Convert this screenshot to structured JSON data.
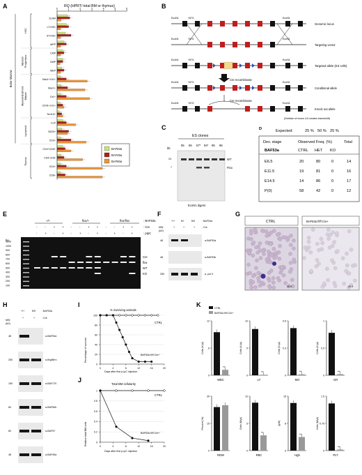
{
  "panels": {
    "A": {
      "letter": "A",
      "axis_title": "RQ (HPRT/ total BM or thymus)",
      "ticks": [
        "0",
        "1",
        "2",
        "3",
        "4",
        "5",
        "6"
      ],
      "legend": [
        "BAF53a",
        "BAF45a",
        "BAF60a"
      ],
      "colors": {
        "BAF53a": "#c9e27a",
        "BAF45a": "#a3231c",
        "BAF60a": "#e8953a"
      },
      "groups": [
        {
          "name": "HSC",
          "rows": [
            "SLAM",
            "LT-HSC",
            "ST-HSC",
            "MPP"
          ]
        },
        {
          "name": "Myeloid Progenitors",
          "rows": [
            "CMP",
            "GMP",
            "MEP"
          ]
        },
        {
          "name": "Myeloid-Erythroid Mature",
          "rows": [
            "Mac1+Gr1+",
            "Mac1+",
            "Gr1+",
            "CD41+Gr1+",
            "Ter119+"
          ]
        },
        {
          "name": "Lymphoid",
          "rows": [
            "CLP",
            "B220+",
            "CD3+"
          ]
        },
        {
          "name": "Thymus",
          "rows": [
            "CD4+CD8+",
            "CD4-CD8-",
            "CD4+",
            "CD8+"
          ]
        }
      ],
      "bone_marrow_label": "Bone Marrow"
    },
    "B": {
      "letter": "B",
      "rows": [
        "Genomic locus",
        "Targeting vector",
        "Targeted allele (ES cells)",
        "Conditional allele",
        "Knock out allele"
      ],
      "cre1": "Cre recombinase",
      "cre2": "Cre recombinase",
      "note": "(Deletion of exons 4-5 creates frameshift)",
      "site": "EcoN1",
      "atg": "ATG"
    },
    "C": {
      "letter": "C",
      "title": "ES clones",
      "lanes": [
        "55",
        "56",
        "57*",
        "94*",
        "95",
        "96"
      ],
      "kb": "kb",
      "mw": [
        "24",
        "7"
      ],
      "wt": "WT",
      "flox": "Flox",
      "digest": "EcoN1 digest"
    },
    "D": {
      "letter": "D",
      "expected_label": "Expected:",
      "expected": [
        "25 %",
        "50 %",
        "25 %"
      ],
      "headers": [
        "Dev. stage",
        "Observed Freq. (%)",
        "Total"
      ],
      "subheaders": [
        "BAF53a",
        "CTRL",
        "HET",
        "KO"
      ],
      "rows": [
        [
          "E6.5",
          "20",
          "80",
          "0",
          "14"
        ],
        [
          "E11.5",
          "19",
          "81",
          "0",
          "16"
        ],
        [
          "E14.5",
          "14",
          "86",
          "0",
          "17"
        ],
        [
          "P(0)",
          "58",
          "42",
          "0",
          "12"
        ]
      ]
    },
    "E": {
      "letter": "E",
      "genotypes": [
        "+/+",
        "flox/+",
        "flox/flox"
      ],
      "row_labels": [
        ": BAF53a",
        ": Cre",
        ": pIpC"
      ],
      "cre_signs": [
        "-",
        "-",
        "+",
        "+",
        "-",
        "-",
        "+",
        "+",
        "-",
        "-",
        "+",
        "+"
      ],
      "pipc_signs": [
        "-",
        "+",
        "-",
        "+",
        "-",
        "+",
        "-",
        "+",
        "-",
        "+",
        "-",
        "+"
      ],
      "bp": "bp",
      "ladder": [
        "1200",
        "1000",
        "900",
        "800",
        "700",
        "600",
        "500",
        "400",
        "300",
        "200",
        "100"
      ],
      "bands": [
        "Cre",
        "flox",
        "WT",
        "KO"
      ]
    },
    "F": {
      "letter": "F",
      "genotypes": [
        "+/+",
        "fl/+",
        "fl/fl"
      ],
      "genotype_label": ": BAF53a",
      "cre_signs": [
        "+",
        "+",
        "+"
      ],
      "cre_label": ": Cre",
      "mw": "MW",
      "kd": "(kD)",
      "markers": [
        "48",
        "48",
        "250"
      ],
      "blots": [
        "α-BAF53a",
        "α-BAF53b",
        "α- pol II"
      ]
    },
    "G": {
      "letter": "G",
      "titles": [
        "CTRL",
        "BAF53a fl/fl Cre+"
      ],
      "mag": "20 X"
    },
    "H": {
      "letter": "H",
      "genotypes": [
        "+/+",
        "fl/fl"
      ],
      "genotype_label": ": BAF53a",
      "cre_signs": [
        "+",
        "+"
      ],
      "cre_label": ": Cre",
      "mw": "MW",
      "kd": "(kD)",
      "markers": [
        "48",
        "250",
        "150",
        "60",
        "60",
        "48"
      ],
      "blots": [
        "α-BAF53a",
        "α-Brg/Brm",
        "α-BAF170",
        "α-BAF60b",
        "α-BAF57",
        "α-BAF45a"
      ]
    },
    "I": {
      "letter": "I",
      "title": "% Surviving animals",
      "ylabel": "Percentage of survival",
      "xlabel": "Days after first p-IpC injection",
      "ctrl": "CTRL",
      "ko": "BAF53a fl/fl Cre+",
      "chart_data": {
        "type": "line",
        "xlim": [
          0,
          20
        ],
        "ylim": [
          0,
          100
        ],
        "series": [
          {
            "name": "CTRL",
            "x": [
              0,
              2,
              4,
              6,
              8,
              10,
              12,
              14,
              16,
              18
            ],
            "y": [
              100,
              100,
              100,
              100,
              100,
              100,
              100,
              100,
              100,
              100
            ]
          },
          {
            "name": "BAF53a fl/fl Cre+",
            "x": [
              0,
              2,
              4,
              5,
              6,
              7,
              8,
              9,
              10,
              12,
              14,
              16
            ],
            "y": [
              100,
              100,
              100,
              85,
              70,
              55,
              40,
              25,
              12,
              5,
              5,
              5
            ]
          }
        ]
      }
    },
    "J": {
      "letter": "J",
      "title": "Total BM cellularity",
      "ylabel": "Relative total BM cells",
      "xlabel": "Days after first p-IpC injection",
      "ctrl": "CTRL",
      "ko": "BAF53a fl/fl Cre+",
      "chart_data": {
        "type": "line",
        "xlim": [
          0,
          20
        ],
        "ylim": [
          0,
          1
        ],
        "series": [
          {
            "name": "CTRL",
            "x": [
              0,
              5,
              10,
              15,
              20
            ],
            "y": [
              1,
              1,
              1,
              1,
              1
            ]
          },
          {
            "name": "BAF53a fl/fl Cre+",
            "x": [
              0,
              5,
              10,
              15
            ],
            "y": [
              1,
              0.3,
              0.08,
              0.03
            ]
          }
        ]
      }
    },
    "K": {
      "letter": "K",
      "legend": [
        "CTRL",
        "BAF53a fl/fl Cre+"
      ],
      "colors": {
        "CTRL": "#111111",
        "KO": "#999999"
      },
      "sig": "**",
      "chart_data": {
        "type": "bar",
        "categories": [
          "CTRL",
          "BAF53a fl/fl Cre+"
        ],
        "panels": [
          {
            "label": "WBC",
            "ylabel": "Cells (K/µl)",
            "ymax": 12,
            "values": [
              9.5,
              1.2
            ]
          },
          {
            "label": "LY",
            "ylabel": "Cells (K/µl)",
            "ymax": 10,
            "values": [
              8.5,
              0.1
            ]
          },
          {
            "label": "MO",
            "ylabel": "Cells (K/µl)",
            "ymax": 0.6,
            "values": [
              0.52,
              0.01
            ]
          },
          {
            "label": "GR",
            "ylabel": "Cells (K/µl)",
            "ymax": 1.0,
            "values": [
              0.78,
              0.02
            ]
          },
          {
            "label": "RDW",
            "ylabel": "Percent (%)",
            "ymax": 30,
            "values": [
              24,
              25
            ]
          },
          {
            "label": "RBC",
            "ylabel": "Cells (M/µl)",
            "ymax": 10,
            "values": [
              8.8,
              2.8
            ]
          },
          {
            "label": "Hgb",
            "ylabel": "(g/dl)",
            "ymax": 16,
            "values": [
              14,
              4
            ]
          },
          {
            "label": "PLT",
            "ylabel": "Cells (M/µl)",
            "ymax": 1.5,
            "values": [
              1.3,
              0.03
            ]
          }
        ]
      }
    }
  }
}
